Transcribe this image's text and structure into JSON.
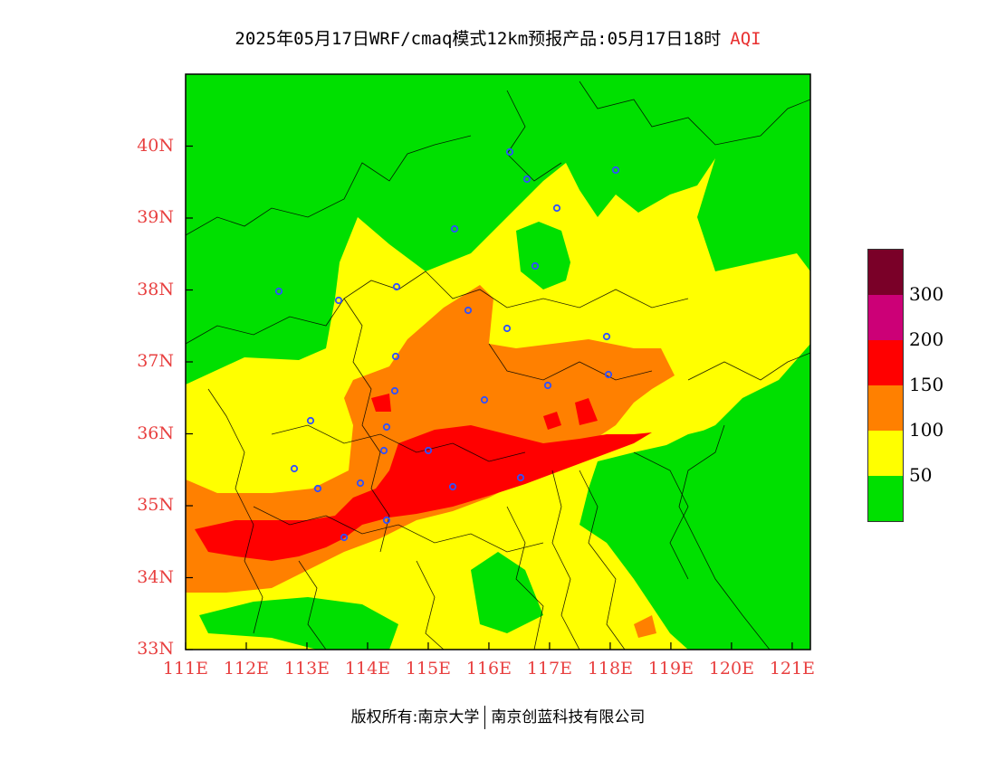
{
  "title": {
    "main": "2025年05月17日WRF/cmaq模式12km预报产品:05月17日18时",
    "product": "AQI"
  },
  "axes": {
    "lat_ticks": [
      "40N",
      "39N",
      "38N",
      "37N",
      "36N",
      "35N",
      "34N",
      "33N"
    ],
    "lon_ticks": [
      "111E",
      "112E",
      "113E",
      "114E",
      "115E",
      "116E",
      "117E",
      "118E",
      "119E",
      "120E",
      "121E"
    ],
    "lat_range": [
      33,
      41
    ],
    "lon_range": [
      111,
      121.3
    ]
  },
  "legend": {
    "labels": [
      "300",
      "200",
      "150",
      "100",
      "50"
    ],
    "colors": [
      "#7a0028",
      "#cc0077",
      "#ff0000",
      "#ff8000",
      "#ffff00",
      "#00e000"
    ]
  },
  "colors": {
    "good": "#00e000",
    "moderate": "#ffff00",
    "usg": "#ff8000",
    "unhealthy": "#ff0000",
    "label": "#e84040",
    "city_marker": "#3050ff"
  },
  "footer": {
    "left": "版权所有:南京大学",
    "right": "南京创蓝科技有限公司"
  }
}
